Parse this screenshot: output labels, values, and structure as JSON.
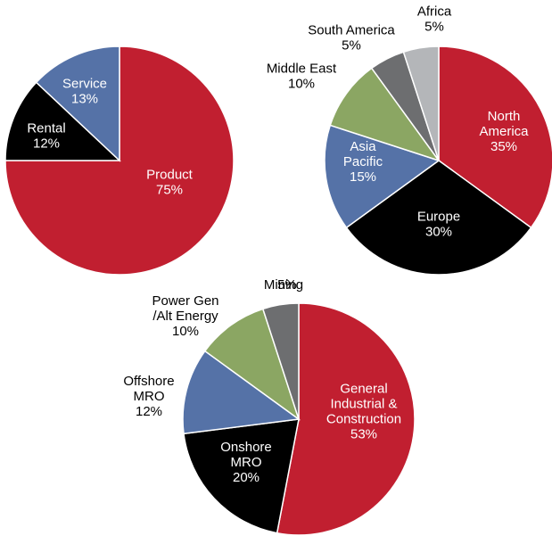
{
  "chart_data": [
    {
      "type": "pie",
      "categories": [
        "Product",
        "Rental",
        "Service"
      ],
      "values": [
        75,
        12,
        13
      ],
      "value_labels": [
        "75%",
        "12%",
        "13%"
      ],
      "colors": [
        "#c11f30",
        "#000000",
        "#5572a7"
      ]
    },
    {
      "type": "pie",
      "categories": [
        "North\nAmerica",
        "Europe",
        "Asia\nPacific",
        "Middle East",
        "South America",
        "Africa"
      ],
      "values": [
        35,
        30,
        15,
        10,
        5,
        5
      ],
      "value_labels": [
        "35%",
        "30%",
        "15%",
        "10%",
        "5%",
        "5%"
      ],
      "colors": [
        "#c11f30",
        "#000000",
        "#5572a7",
        "#8ba663",
        "#6d6e70",
        "#b4b6b9"
      ]
    },
    {
      "type": "pie",
      "categories": [
        "General\nIndustrial &\nConstruction",
        "Onshore\nMRO",
        "Offshore\nMRO",
        "Power Gen\n/Alt Energy",
        "Mining"
      ],
      "values": [
        53,
        20,
        12,
        10,
        5
      ],
      "value_labels": [
        "53%",
        "20%",
        "12%",
        "10%",
        "5%"
      ],
      "colors": [
        "#c11f30",
        "#000000",
        "#5572a7",
        "#8ba663",
        "#6d6e70"
      ]
    }
  ]
}
